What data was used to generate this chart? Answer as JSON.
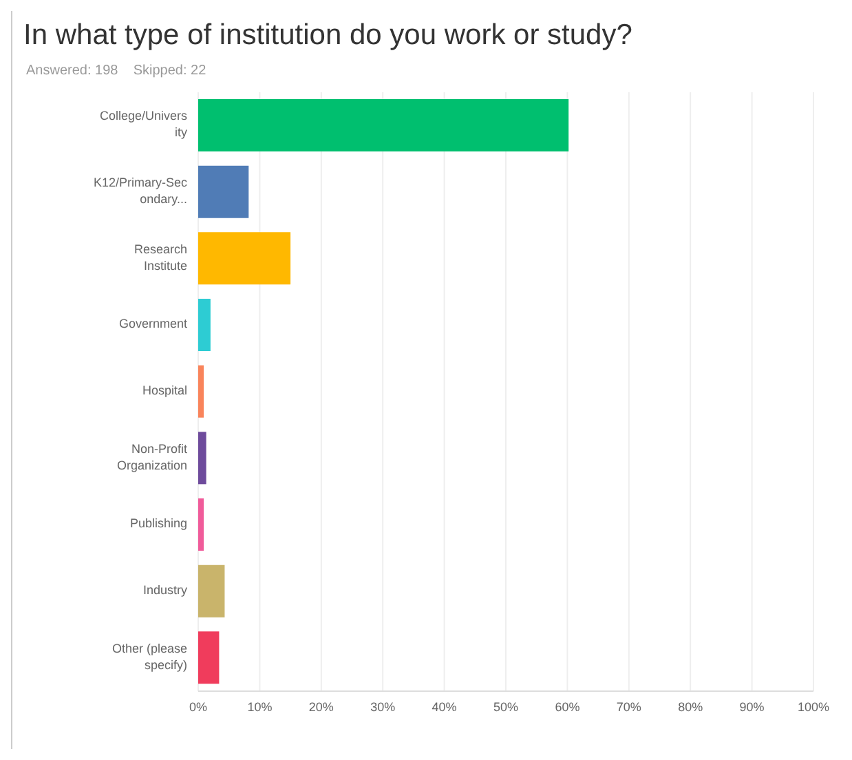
{
  "chart_data": {
    "type": "bar",
    "orientation": "horizontal",
    "title": "In what type of institution do you work or study?",
    "subtitle": "Answered: 198    Skipped: 22",
    "categories": [
      "College/University",
      "K12/Primary-Secondary...",
      "Research Institute",
      "Government",
      "Hospital",
      "Non-Profit Organization",
      "Publishing",
      "Industry",
      "Other (please specify)"
    ],
    "values": [
      60.2,
      8.2,
      15,
      2,
      0.9,
      1.3,
      0.9,
      4.3,
      3.4
    ],
    "colors": [
      "#00bf6f",
      "#507cb6",
      "#ffb800",
      "#2dccd3",
      "#f9845b",
      "#6e4b9c",
      "#f05b9a",
      "#c9b46b",
      "#f03c5c"
    ],
    "xlim": [
      0,
      100
    ],
    "xticks": [
      {
        "value": 0,
        "label": "0%"
      },
      {
        "value": 10,
        "label": "10%"
      },
      {
        "value": 20,
        "label": "20%"
      },
      {
        "value": 30,
        "label": "30%"
      },
      {
        "value": 40,
        "label": "40%"
      },
      {
        "value": 50,
        "label": "50%"
      },
      {
        "value": 60,
        "label": "60%"
      },
      {
        "value": 70,
        "label": "70%"
      },
      {
        "value": 80,
        "label": "80%"
      },
      {
        "value": 90,
        "label": "90%"
      },
      {
        "value": 100,
        "label": "100%"
      }
    ],
    "grid": "x"
  }
}
